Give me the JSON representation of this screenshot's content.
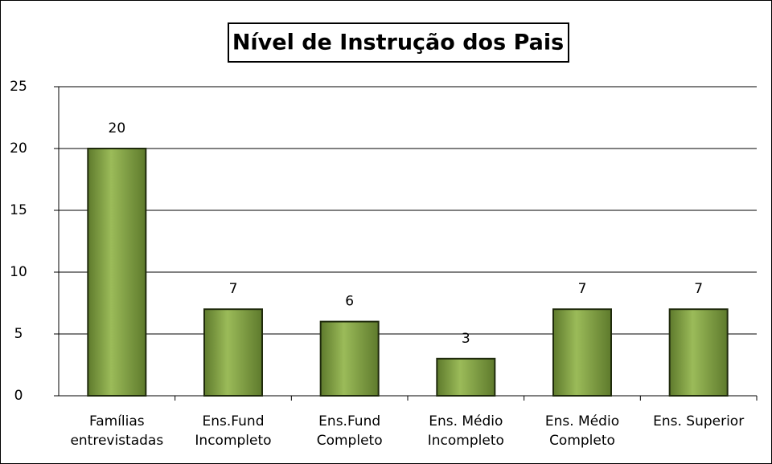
{
  "chart_data": {
    "type": "bar",
    "title": "Nível de Instrução dos Pais",
    "categories": [
      "Famílias entrevistadas",
      "Ens.Fund Incompleto",
      "Ens.Fund Completo",
      "Ens. Médio Incompleto",
      "Ens. Médio Completo",
      "Ens. Superior"
    ],
    "values": [
      20,
      7,
      6,
      3,
      7,
      7
    ],
    "color": "#77933c",
    "ylim": [
      0,
      25
    ],
    "yticks": [
      0,
      5,
      10,
      15,
      20,
      25
    ],
    "grid": true
  }
}
